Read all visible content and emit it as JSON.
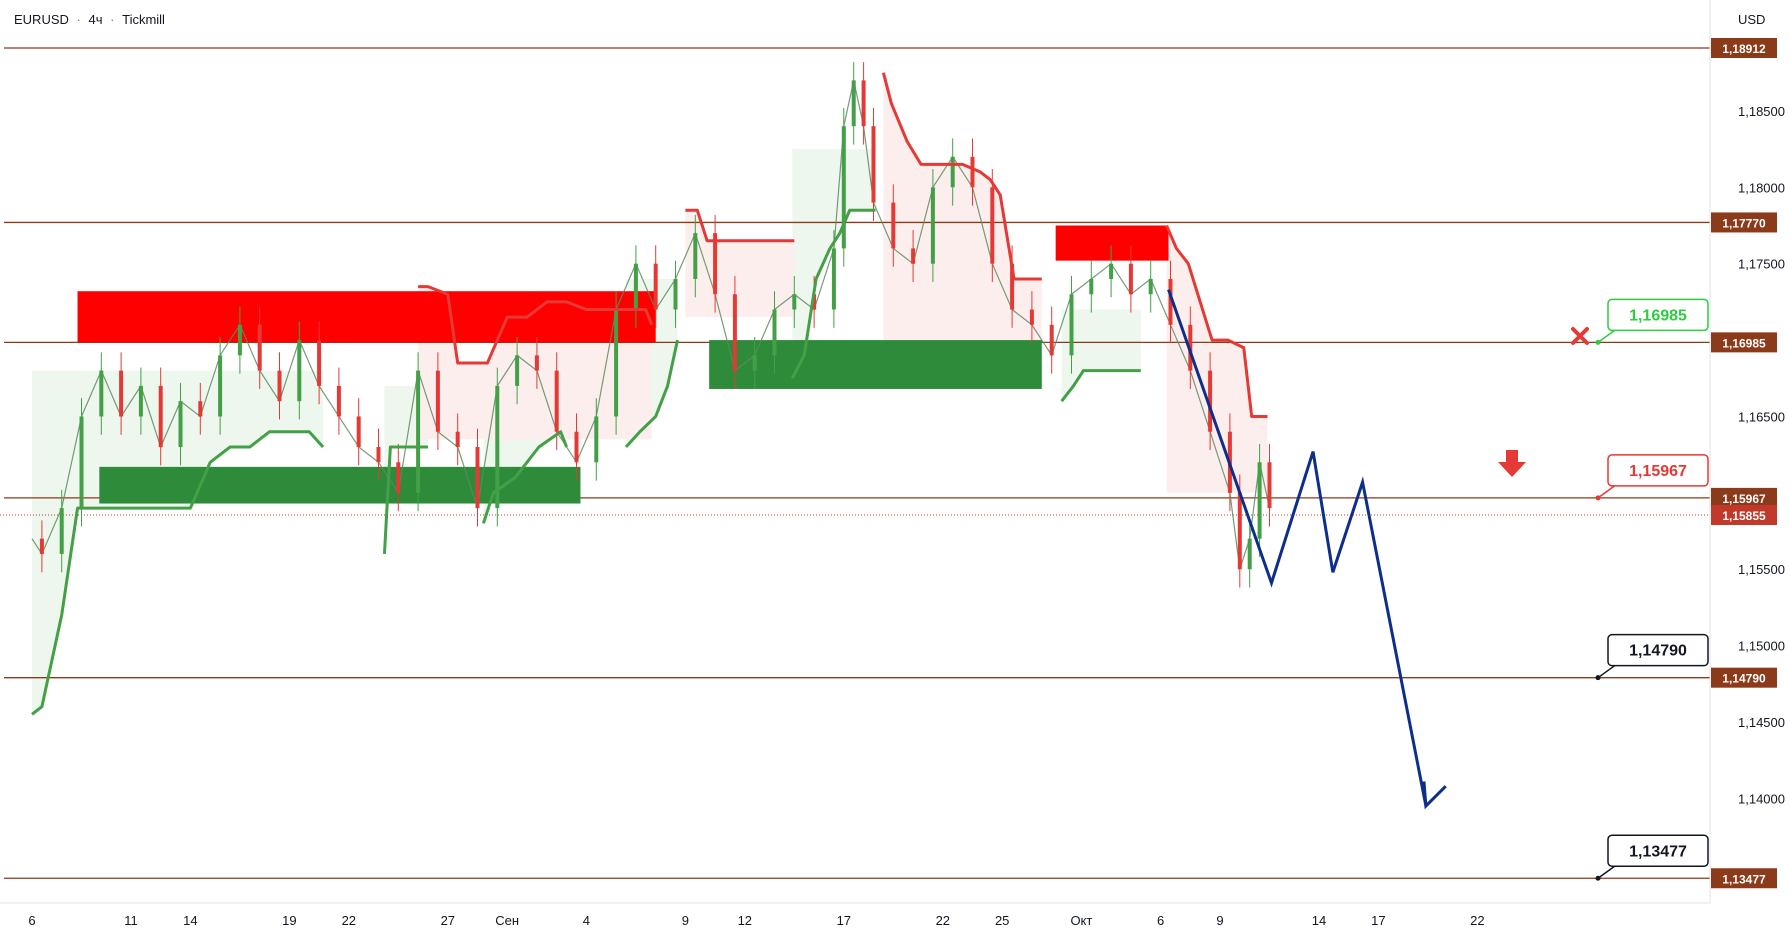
{
  "header": {
    "symbol": "EURUSD",
    "interval": "4ч",
    "broker": "Tickmill",
    "currency": "USD"
  },
  "colors": {
    "level_line": "#8b3a1a",
    "level_tag": "#8b3a1a",
    "bull": "#43a047",
    "bear": "#e53935",
    "forecast": "#0d2e8a",
    "supply_zone": "#ff0000",
    "demand_zone": "#2e8b3a",
    "last_price": "#c0392b"
  },
  "chart_data": {
    "type": "line",
    "instrument": "EURUSD",
    "timeframe": "4ч",
    "ylim": [
      1.1318,
      1.1965
    ],
    "y_ticks": [
      1.185,
      1.18,
      1.175,
      1.165,
      1.155,
      1.15,
      1.145,
      1.14
    ],
    "x_ticks": [
      "6",
      "11",
      "14",
      "19",
      "22",
      "27",
      "Сен",
      "4",
      "9",
      "12",
      "17",
      "22",
      "25",
      "Окт",
      "6",
      "9",
      "14",
      "17",
      "22"
    ],
    "x_tick_idx": [
      0,
      5,
      8,
      13,
      16,
      21,
      24,
      28,
      33,
      36,
      41,
      46,
      49,
      53,
      57,
      60,
      65,
      68,
      73
    ],
    "levels": [
      {
        "value": "1,18912",
        "y": 1.18912
      },
      {
        "value": "1,17770",
        "y": 1.1777
      },
      {
        "value": "1,16985",
        "y": 1.16985
      },
      {
        "value": "1,15967",
        "y": 1.15967
      },
      {
        "value": "1,14790",
        "y": 1.1479
      },
      {
        "value": "1,13477",
        "y": 1.13477
      }
    ],
    "last_price": {
      "value": "1,15855",
      "y": 1.15855
    },
    "callouts": [
      {
        "value": "1,16985",
        "y": 1.16985,
        "style": "green"
      },
      {
        "value": "1,15967",
        "y": 1.15967,
        "style": "red"
      },
      {
        "value": "1,14790",
        "y": 1.1479,
        "style": "black"
      },
      {
        "value": "1,13477",
        "y": 1.13477,
        "style": "black"
      }
    ],
    "price_path": {
      "x": [
        0,
        0.5,
        1.5,
        2.5,
        3.5,
        4.5,
        5.5,
        6.5,
        7.5,
        8.5,
        9.5,
        10.5,
        11.5,
        12.5,
        13.5,
        14.5,
        15.5,
        16.5,
        17.5,
        18.5,
        19.5,
        20.5,
        21.5,
        22.5,
        23.5,
        24.5,
        25.5,
        26.5,
        27.5,
        28.5,
        29.5,
        30.5,
        31.5,
        32.5,
        33.5,
        34.5,
        35.5,
        36.5,
        37.5,
        38.5,
        39.5,
        40.5,
        41.0,
        41.5,
        42.0,
        42.5,
        43.5,
        44.5,
        45.5,
        46.5,
        47.5,
        48.5,
        49.5,
        50.5,
        51.5,
        52.5,
        53.5,
        54.5,
        55.5,
        56.5,
        57.5,
        58.5,
        59.5,
        60.5,
        61.0,
        61.5,
        62.0,
        62.5
      ],
      "y": [
        1.157,
        1.156,
        1.159,
        1.165,
        1.168,
        1.165,
        1.167,
        1.163,
        1.166,
        1.165,
        1.169,
        1.171,
        1.168,
        1.166,
        1.17,
        1.167,
        1.165,
        1.163,
        1.162,
        1.16,
        1.168,
        1.164,
        1.163,
        1.159,
        1.167,
        1.169,
        1.168,
        1.164,
        1.162,
        1.165,
        1.172,
        1.175,
        1.172,
        1.174,
        1.177,
        1.173,
        1.168,
        1.169,
        1.172,
        1.173,
        1.172,
        1.176,
        1.184,
        1.187,
        1.184,
        1.179,
        1.176,
        1.175,
        1.18,
        1.182,
        1.18,
        1.175,
        1.172,
        1.171,
        1.169,
        1.173,
        1.174,
        1.175,
        1.173,
        1.174,
        1.171,
        1.168,
        1.164,
        1.16,
        1.155,
        1.157,
        1.162,
        1.159
      ]
    },
    "supertrend_up": [
      {
        "x": [
          0,
          0.5,
          1.5,
          2.3,
          3.0,
          4.0,
          5.0,
          6.0,
          7.0,
          8.0,
          9.0,
          10.0,
          11.0,
          12.0,
          13.0,
          14.0,
          14.7
        ],
        "y": [
          1.1455,
          1.146,
          1.152,
          1.159,
          1.159,
          1.159,
          1.159,
          1.159,
          1.159,
          1.159,
          1.162,
          1.163,
          1.163,
          1.164,
          1.164,
          1.164,
          1.163
        ]
      },
      {
        "x": [
          17.8,
          18.1,
          19,
          20
        ],
        "y": [
          1.156,
          1.163,
          1.163,
          1.163
        ]
      },
      {
        "x": [
          22.8,
          23.3,
          24.4,
          25.6,
          26.7,
          27.0
        ],
        "y": [
          1.158,
          1.16,
          1.161,
          1.163,
          1.164,
          1.163
        ]
      },
      {
        "x": [
          30.0,
          30.7,
          31.5,
          32.1,
          32.6
        ],
        "y": [
          1.163,
          1.164,
          1.165,
          1.167,
          1.17
        ]
      },
      {
        "x": [
          38.4,
          39.0,
          39.6,
          40.3,
          40.8,
          41.3,
          42.6
        ],
        "y": [
          1.1675,
          1.169,
          1.174,
          1.176,
          1.177,
          1.1785,
          1.1785
        ]
      },
      {
        "x": [
          52.0,
          52.6,
          53.1,
          54.0,
          55.0,
          56.0
        ],
        "y": [
          1.166,
          1.167,
          1.168,
          1.168,
          1.168,
          1.168
        ]
      }
    ],
    "supertrend_down": [
      {
        "x": [
          19.5,
          20.0,
          21.0,
          21.5,
          22.2,
          23.0,
          24.0,
          25.0,
          26.0,
          27.0,
          28.0,
          29.0,
          30.0,
          31.0,
          31.3
        ],
        "y": [
          1.1735,
          1.1735,
          1.173,
          1.1685,
          1.1685,
          1.1685,
          1.1715,
          1.1715,
          1.1725,
          1.1725,
          1.172,
          1.172,
          1.172,
          1.172,
          1.171
        ]
      },
      {
        "x": [
          33.0,
          33.6,
          34.1,
          35.0,
          36.0,
          37.0,
          38.0,
          38.5
        ],
        "y": [
          1.1785,
          1.1785,
          1.1765,
          1.1765,
          1.1765,
          1.1765,
          1.1765,
          1.1765
        ]
      },
      {
        "x": [
          43.0,
          43.4,
          44.2,
          44.9,
          46.0,
          47.0,
          47.9,
          48.4,
          48.9,
          49.6,
          50.6,
          51.0
        ],
        "y": [
          1.1875,
          1.1855,
          1.183,
          1.1815,
          1.1815,
          1.1815,
          1.181,
          1.1805,
          1.1795,
          1.174,
          1.174,
          1.174
        ]
      },
      {
        "x": [
          57.3,
          57.8,
          58.4,
          59.0,
          59.6,
          60.4,
          61.2,
          61.6,
          62.4
        ],
        "y": [
          1.1775,
          1.176,
          1.175,
          1.1725,
          1.17,
          1.17,
          1.1695,
          1.165,
          1.165
        ]
      }
    ],
    "supply_zones": [
      {
        "x0": 2.3,
        "x1": 31.5,
        "y0": 1.16985,
        "y1": 1.1732
      },
      {
        "x0": 51.7,
        "x1": 57.4,
        "y0": 1.1752,
        "y1": 1.1775
      }
    ],
    "demand_zones": [
      {
        "x0": 3.4,
        "x1": 27.7,
        "y0": 1.1593,
        "y1": 1.1617
      },
      {
        "x0": 34.2,
        "x1": 51.0,
        "y0": 1.1668,
        "y1": 1.17
      }
    ],
    "forecast_path": {
      "x": [
        57.4,
        62.6,
        64.7,
        65.7,
        67.2,
        70.4
      ],
      "y": [
        1.1733,
        1.1541,
        1.1627,
        1.1548,
        1.1607,
        1.1395
      ]
    },
    "forecast_arrowhead": {
      "x": [
        70.3,
        71.4
      ],
      "y": [
        1.1411,
        1.1408
      ]
    }
  }
}
